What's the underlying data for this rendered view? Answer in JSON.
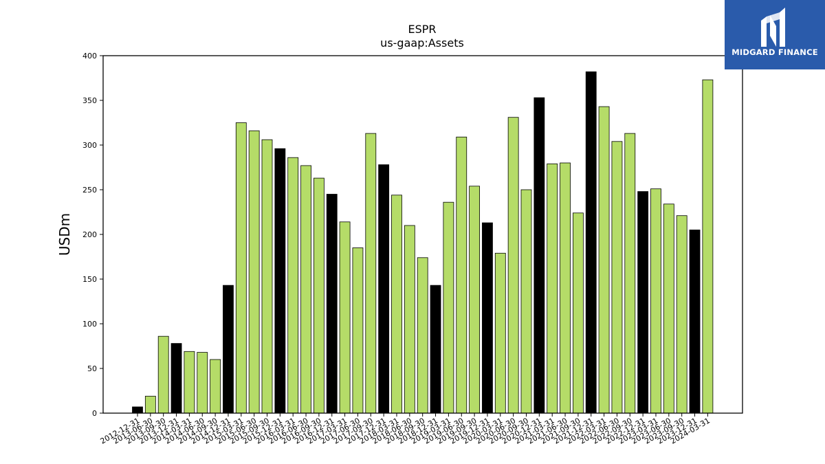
{
  "brand": {
    "name": "MIDGARD FINANCE",
    "logo_icon": "midgard-m-logo-icon",
    "background_color": "#2a5bab"
  },
  "chart_data": {
    "type": "bar",
    "title": "ESPR",
    "subtitle": "us-gaap:Assets",
    "xlabel": "",
    "ylabel": "USDm",
    "ylim": [
      0,
      400
    ],
    "yticks": [
      0,
      50,
      100,
      150,
      200,
      250,
      300,
      350,
      400
    ],
    "grid": false,
    "colors": {
      "quarter": "#b5dc68",
      "year_end": "#000000",
      "edge": "#000000"
    },
    "categories": [
      "2012-12-31",
      "2013-06-30",
      "2013-09-30",
      "2013-12-31",
      "2014-03-31",
      "2014-06-30",
      "2014-09-30",
      "2014-12-31",
      "2015-03-31",
      "2015-06-30",
      "2015-09-30",
      "2015-12-31",
      "2016-03-31",
      "2016-06-30",
      "2016-09-30",
      "2016-12-31",
      "2017-03-31",
      "2017-06-30",
      "2017-09-30",
      "2017-12-31",
      "2018-03-31",
      "2018-06-30",
      "2018-09-30",
      "2018-12-31",
      "2019-03-31",
      "2019-06-30",
      "2019-09-30",
      "2019-12-31",
      "2020-03-31",
      "2020-06-30",
      "2020-09-30",
      "2020-12-31",
      "2021-03-31",
      "2021-06-30",
      "2021-09-30",
      "2021-12-31",
      "2022-03-31",
      "2022-06-30",
      "2022-09-30",
      "2022-12-31",
      "2023-03-31",
      "2023-06-30",
      "2023-09-30",
      "2023-12-31",
      "2024-03-31"
    ],
    "values": [
      7,
      19,
      86,
      78,
      69,
      68,
      60,
      143,
      325,
      316,
      306,
      296,
      286,
      277,
      263,
      245,
      214,
      185,
      313,
      278,
      244,
      210,
      174,
      143,
      236,
      309,
      254,
      213,
      179,
      331,
      250,
      353,
      279,
      280,
      224,
      382,
      343,
      304,
      313,
      248,
      251,
      234,
      221,
      205,
      373
    ],
    "year_end": [
      true,
      false,
      false,
      true,
      false,
      false,
      false,
      true,
      false,
      false,
      false,
      true,
      false,
      false,
      false,
      true,
      false,
      false,
      false,
      true,
      false,
      false,
      false,
      true,
      false,
      false,
      false,
      true,
      false,
      false,
      false,
      true,
      false,
      false,
      false,
      true,
      false,
      false,
      false,
      true,
      false,
      false,
      false,
      true,
      false
    ]
  }
}
